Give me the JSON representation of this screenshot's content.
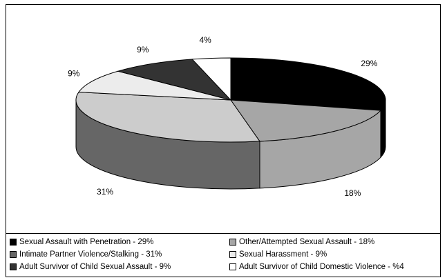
{
  "chart_data": {
    "type": "pie",
    "style": "3d",
    "slices": [
      {
        "label": "Sexual Assault with Penetration - 29%",
        "value": 29,
        "data_label": "29%",
        "color": "#000000",
        "side_color": "#000000"
      },
      {
        "label": "Other/Attempted Sexual Assault - 18%",
        "value": 18,
        "data_label": "18%",
        "color": "#a6a6a6",
        "side_color": "#a6a6a6"
      },
      {
        "label": "Intimate Partner Violence/Stalking - 31%",
        "value": 31,
        "data_label": "31%",
        "color": "#cccccc",
        "side_color": "#666666"
      },
      {
        "label": "Sexual Harassment - 9%",
        "value": 9,
        "data_label": "9%",
        "color": "#ececec",
        "side_color": "#ececec"
      },
      {
        "label": "Adult Survivor of Child Sexual Assault - 9%",
        "value": 9,
        "data_label": "9%",
        "color": "#333333",
        "side_color": "#333333"
      },
      {
        "label": "Adult Survivor of Child Domestic Violence - %4",
        "value": 4,
        "data_label": "4%",
        "color": "#ffffff",
        "side_color": "#ffffff"
      }
    ],
    "legend_position": "bottom"
  }
}
